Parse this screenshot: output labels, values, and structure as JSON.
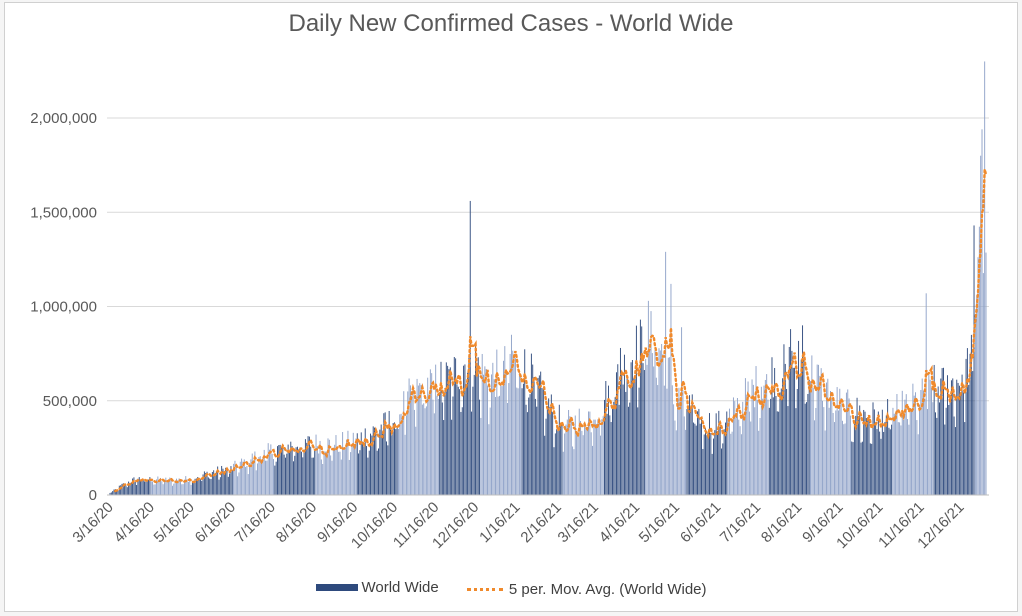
{
  "colors": {
    "bar": "#2e4a7d",
    "bar_light": "#8fa2c8",
    "line": "#f08a2c",
    "grid": "#d9d9d9"
  },
  "chart_data": {
    "type": "bar",
    "title": "Daily New Confirmed Cases - World Wide",
    "xlabel": "",
    "ylabel": "",
    "ylim": [
      0,
      2300000
    ],
    "yticks": [
      0,
      500000,
      1000000,
      1500000,
      2000000
    ],
    "ytick_labels": [
      "0",
      "500,000",
      "1,000,000",
      "1,500,000",
      "2,000,000"
    ],
    "x_tick_labels": [
      "3/16/20",
      "4/16/20",
      "5/16/20",
      "6/16/20",
      "7/16/20",
      "8/16/20",
      "9/16/20",
      "10/16/20",
      "11/16/20",
      "12/16/20",
      "1/16/21",
      "2/16/21",
      "3/16/21",
      "4/16/21",
      "5/16/21",
      "6/16/21",
      "7/16/21",
      "8/16/21",
      "9/16/21",
      "10/16/21",
      "11/16/21",
      "12/16/21"
    ],
    "x_tick_day_index": [
      0,
      31,
      61,
      92,
      122,
      153,
      184,
      214,
      245,
      275,
      306,
      337,
      365,
      396,
      426,
      457,
      487,
      518,
      549,
      579,
      610,
      640
    ],
    "num_days": 660,
    "series": [
      {
        "name": "World Wide",
        "kind": "bar",
        "anchors": [
          [
            0,
            10000
          ],
          [
            10,
            55000
          ],
          [
            20,
            85000
          ],
          [
            35,
            80000
          ],
          [
            50,
            78000
          ],
          [
            61,
            85000
          ],
          [
            75,
            115000
          ],
          [
            92,
            140000
          ],
          [
            107,
            190000
          ],
          [
            122,
            230000
          ],
          [
            138,
            260000
          ],
          [
            153,
            270000
          ],
          [
            168,
            260000
          ],
          [
            184,
            285000
          ],
          [
            199,
            330000
          ],
          [
            214,
            390000
          ],
          [
            225,
            500000
          ],
          [
            235,
            560000
          ],
          [
            245,
            580000
          ],
          [
            255,
            600000
          ],
          [
            265,
            670000
          ],
          [
            275,
            690000
          ],
          [
            285,
            600000
          ],
          [
            295,
            640000
          ],
          [
            306,
            710000
          ],
          [
            316,
            620000
          ],
          [
            325,
            520000
          ],
          [
            337,
            390000
          ],
          [
            347,
            360000
          ],
          [
            355,
            400000
          ],
          [
            365,
            430000
          ],
          [
            375,
            520000
          ],
          [
            387,
            650000
          ],
          [
            396,
            750000
          ],
          [
            405,
            800000
          ],
          [
            412,
            790000
          ],
          [
            420,
            640000
          ],
          [
            426,
            500000
          ],
          [
            437,
            450000
          ],
          [
            447,
            380000
          ],
          [
            457,
            360000
          ],
          [
            467,
            410000
          ],
          [
            477,
            500000
          ],
          [
            487,
            570000
          ],
          [
            497,
            620000
          ],
          [
            507,
            650000
          ],
          [
            518,
            680000
          ],
          [
            528,
            630000
          ],
          [
            538,
            550000
          ],
          [
            549,
            470000
          ],
          [
            559,
            440000
          ],
          [
            569,
            410000
          ],
          [
            579,
            400000
          ],
          [
            589,
            420000
          ],
          [
            600,
            470000
          ],
          [
            610,
            500000
          ],
          [
            620,
            560000
          ],
          [
            630,
            560000
          ],
          [
            640,
            600000
          ],
          [
            648,
            700000
          ],
          [
            652,
            1100000
          ],
          [
            655,
            1650000
          ],
          [
            658,
            2000000
          ],
          [
            659,
            1400000
          ]
        ],
        "spikes": [
          [
            271,
            1560000
          ],
          [
            302,
            850000
          ],
          [
            384,
            780000
          ],
          [
            405,
            1030000
          ],
          [
            418,
            1290000
          ],
          [
            422,
            1120000
          ],
          [
            430,
            890000
          ],
          [
            512,
            880000
          ],
          [
            521,
            900000
          ],
          [
            614,
            1070000
          ],
          [
            650,
            1430000
          ],
          [
            655,
            1800000
          ],
          [
            656,
            1940000
          ],
          [
            658,
            2300000
          ]
        ]
      },
      {
        "name": "5 per. Mov. Avg. (World Wide)",
        "kind": "line"
      }
    ]
  },
  "legend": {
    "bar_label": "World Wide",
    "line_label": "5 per. Mov. Avg. (World Wide)"
  }
}
